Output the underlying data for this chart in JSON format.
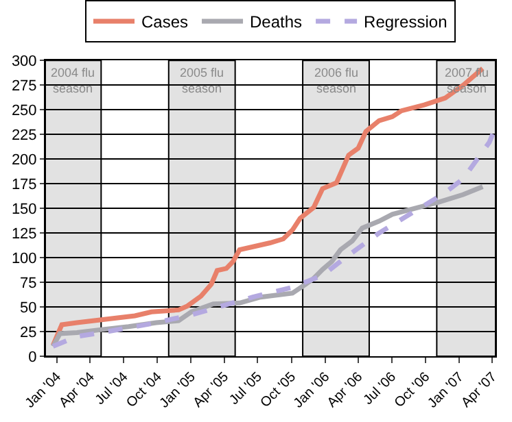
{
  "chart_data": {
    "type": "line",
    "legend": "top",
    "grid": "y",
    "line_style": "solid",
    "marker": "none",
    "xlim": [
      "2003-12-01",
      "2007-04-10"
    ],
    "xticks": [
      {
        "value": "2004-01-01",
        "label": "Jan '04"
      },
      {
        "value": "2004-04-01",
        "label": "Apr '04"
      },
      {
        "value": "2004-07-01",
        "label": "Jul '04"
      },
      {
        "value": "2004-10-01",
        "label": "Oct '04"
      },
      {
        "value": "2005-01-01",
        "label": "Jan '05"
      },
      {
        "value": "2005-04-01",
        "label": "Apr '05"
      },
      {
        "value": "2005-07-01",
        "label": "Jul '05"
      },
      {
        "value": "2005-10-01",
        "label": "Oct '05"
      },
      {
        "value": "2006-01-01",
        "label": "Jan '06"
      },
      {
        "value": "2006-04-01",
        "label": "Apr '06"
      },
      {
        "value": "2006-07-01",
        "label": "Jul '06"
      },
      {
        "value": "2006-10-01",
        "label": "Oct '06"
      },
      {
        "value": "2007-01-01",
        "label": "Jan '07"
      },
      {
        "value": "2007-04-01",
        "label": "Apr '07"
      }
    ],
    "ylim": [
      0,
      300
    ],
    "yticks": [
      0,
      25,
      50,
      75,
      100,
      125,
      150,
      175,
      200,
      225,
      250,
      275,
      300
    ],
    "bands": [
      {
        "axis": "x",
        "from": "2003-12-01",
        "to": "2004-05-01",
        "label": "2004 flu season",
        "color": "#e2e2e2"
      },
      {
        "axis": "x",
        "from": "2004-11-01",
        "to": "2005-05-01",
        "label": "2005 flu season",
        "color": "#e2e2e2"
      },
      {
        "axis": "x",
        "from": "2005-11-01",
        "to": "2006-05-01",
        "label": "2006 flu season",
        "color": "#e2e2e2"
      },
      {
        "axis": "x",
        "from": "2006-11-01",
        "to": "2007-04-10",
        "label": "2007 flu season",
        "color": "#e2e2e2"
      }
    ],
    "series": [
      {
        "name": "Cases",
        "color": "#e8806a",
        "x": [
          "2003-12-22",
          "2004-01-15",
          "2004-02-25",
          "2004-05-02",
          "2004-08-01",
          "2004-09-15",
          "2004-11-28",
          "2004-12-22",
          "2005-01-28",
          "2005-02-25",
          "2005-03-13",
          "2005-04-07",
          "2005-04-25",
          "2005-04-28",
          "2005-05-13",
          "2005-06-18",
          "2005-08-04",
          "2005-09-09",
          "2005-10-04",
          "2005-10-25",
          "2005-12-01",
          "2005-12-25",
          "2006-02-01",
          "2006-03-06",
          "2006-04-01",
          "2006-04-22",
          "2006-05-28",
          "2006-07-03",
          "2006-07-28",
          "2006-09-28",
          "2006-11-24",
          "2007-01-12",
          "2007-03-06"
        ],
        "values": [
          11,
          32,
          34,
          37,
          41,
          45,
          47,
          51,
          61,
          73,
          87,
          89,
          96,
          98,
          108,
          111,
          115,
          119,
          128,
          140,
          151,
          170,
          176,
          204,
          211,
          228,
          239,
          243,
          249,
          255,
          262,
          275,
          292
        ]
      },
      {
        "name": "Deaths",
        "color": "#a9a9b0",
        "x": [
          "2003-12-22",
          "2004-01-10",
          "2004-02-25",
          "2004-05-02",
          "2004-07-15",
          "2004-09-28",
          "2004-11-28",
          "2005-01-02",
          "2005-03-02",
          "2005-05-13",
          "2005-07-09",
          "2005-10-04",
          "2005-11-09",
          "2005-12-01",
          "2005-12-25",
          "2006-01-19",
          "2006-02-12",
          "2006-03-16",
          "2006-04-12",
          "2006-05-28",
          "2006-07-03",
          "2006-09-13",
          "2006-11-03",
          "2007-01-12",
          "2007-03-06"
        ],
        "values": [
          10,
          23,
          24,
          27,
          30,
          34,
          36,
          45,
          53,
          54,
          60,
          64,
          73,
          79,
          88,
          96,
          108,
          117,
          130,
          137,
          144,
          151,
          156,
          164,
          172
        ]
      },
      {
        "name": "Regression",
        "color": "#b4a9e0",
        "line_style": "dashed",
        "x": [
          "2003-12-22",
          "2004-02-25",
          "2004-05-02",
          "2004-09-15",
          "2005-01-02",
          "2005-06-18",
          "2005-10-04",
          "2005-12-25",
          "2006-02-25",
          "2006-05-28",
          "2006-09-28",
          "2006-11-24",
          "2007-01-12",
          "2007-03-24",
          "2007-04-03"
        ],
        "values": [
          10,
          20,
          24,
          33,
          42,
          60,
          70,
          82,
          100,
          125,
          153,
          166,
          180,
          217,
          226
        ]
      }
    ]
  }
}
